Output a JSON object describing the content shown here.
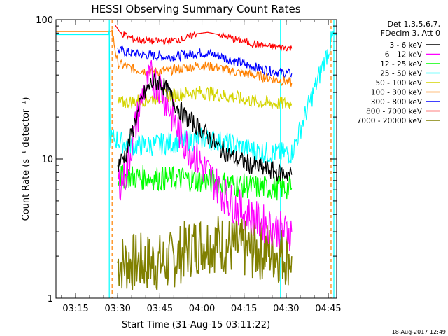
{
  "chart_data": {
    "type": "line",
    "title": "HESSI Observing Summary Count Rates",
    "xlabel": "Start Time (31-Aug-15 03:11:22)",
    "ylabel": "Count Rate (s⁻¹ detector⁻¹)",
    "yscale": "log",
    "ylim": [
      1,
      100
    ],
    "xlim": [
      "03:08",
      "04:48"
    ],
    "x_ticks": [
      "03:15",
      "03:30",
      "03:45",
      "04:00",
      "04:15",
      "04:30",
      "04:45"
    ],
    "y_ticks": [
      "1",
      "10",
      "100"
    ],
    "legend_header": [
      "Det 1,3,5,6,7,",
      "FDecim 3, Att 0"
    ],
    "legend_placement": "right-outside",
    "timestamp": "18-Aug-2017 12:49",
    "vertical_markers": [
      {
        "time": "03:27",
        "color": "#00ffff",
        "style": "solid"
      },
      {
        "time": "03:28",
        "color": "#ff8000",
        "style": "dashed"
      },
      {
        "time": "04:28",
        "color": "#00ffff",
        "style": "solid"
      },
      {
        "time": "04:46",
        "color": "#ff8000",
        "style": "dashed"
      },
      {
        "time": "04:47",
        "color": "#00ffff",
        "style": "solid"
      }
    ],
    "series": [
      {
        "name": "3 - 6 keV",
        "color": "#000000",
        "x": [
          "03:30",
          "03:33",
          "03:36",
          "03:39",
          "03:42",
          "03:45",
          "03:48",
          "03:51",
          "03:54",
          "03:57",
          "04:00",
          "04:03",
          "04:06",
          "04:09",
          "04:12",
          "04:15",
          "04:18",
          "04:21",
          "04:24",
          "04:27",
          "04:30",
          "04:32"
        ],
        "y": [
          9,
          11,
          18,
          28,
          35,
          36,
          30,
          24,
          20,
          18,
          16,
          14,
          12,
          11,
          10,
          9.5,
          9,
          8.6,
          8.3,
          8,
          7.8,
          7.7
        ]
      },
      {
        "name": "6 - 12 keV",
        "color": "#ff00ff",
        "x": [
          "03:30",
          "03:33",
          "03:36",
          "03:39",
          "03:42",
          "03:45",
          "03:48",
          "03:51",
          "03:54",
          "03:57",
          "04:00",
          "04:03",
          "04:06",
          "04:09",
          "04:12",
          "04:15",
          "04:18",
          "04:21",
          "04:24",
          "04:27",
          "04:30",
          "04:32"
        ],
        "y": [
          6.5,
          8,
          16,
          30,
          38,
          34,
          24,
          17,
          13,
          11,
          9,
          7.5,
          6.2,
          5.2,
          4.6,
          4.2,
          3.8,
          3.5,
          3.3,
          3.1,
          3.0,
          3.0
        ]
      },
      {
        "name": "12 - 25 keV",
        "color": "#00ff00",
        "x": [
          "03:30",
          "03:36",
          "03:42",
          "03:48",
          "03:54",
          "04:00",
          "04:06",
          "04:12",
          "04:18",
          "04:24",
          "04:30",
          "04:32"
        ],
        "y": [
          7.5,
          7.4,
          7.3,
          7.2,
          7.2,
          7,
          6.8,
          6.5,
          6.3,
          6.2,
          6.2,
          6.2
        ]
      },
      {
        "name": "25 - 50 keV",
        "color": "#00ffff",
        "x": [
          "03:08",
          "03:27",
          "03:29",
          "03:32",
          "03:36",
          "03:42",
          "03:48",
          "03:54",
          "04:00",
          "04:06",
          "04:12",
          "04:18",
          "04:24",
          "04:30",
          "04:32",
          "04:47",
          "04:48"
        ],
        "y": [
          78,
          78,
          14,
          13,
          12.5,
          12.5,
          13,
          13.5,
          14,
          13.5,
          12.5,
          11.5,
          11,
          11,
          11,
          78,
          78
        ]
      },
      {
        "name": "50 - 100 keV",
        "color": "#d4d400",
        "x": [
          "03:30",
          "03:36",
          "03:42",
          "03:48",
          "03:54",
          "04:00",
          "04:06",
          "04:12",
          "04:18",
          "04:24",
          "04:30",
          "04:32"
        ],
        "y": [
          25,
          26,
          27,
          28.5,
          29.5,
          30,
          29,
          27.5,
          26,
          25,
          25,
          25
        ]
      },
      {
        "name": "100 - 300 keV",
        "color": "#ff8000",
        "x": [
          "03:08",
          "03:28",
          "03:30",
          "03:36",
          "03:42",
          "03:48",
          "03:54",
          "04:00",
          "04:06",
          "04:12",
          "04:18",
          "04:24",
          "04:30",
          "04:32"
        ],
        "y": [
          82,
          82,
          48,
          44,
          42,
          43,
          45,
          47,
          45,
          42,
          40,
          38,
          36,
          35
        ]
      },
      {
        "name": "300 - 800 keV",
        "color": "#0000ff",
        "x": [
          "03:30",
          "03:36",
          "03:42",
          "03:48",
          "03:54",
          "04:00",
          "04:06",
          "04:12",
          "04:18",
          "04:24",
          "04:30",
          "04:32"
        ],
        "y": [
          60,
          57,
          55,
          54,
          56,
          58,
          55,
          50,
          46,
          43,
          41,
          41
        ]
      },
      {
        "name": "800 - 7000 keV",
        "color": "#ff0000",
        "x": [
          "03:29",
          "03:31",
          "03:36",
          "03:42",
          "03:48",
          "03:54",
          "03:58",
          "04:02",
          "04:06",
          "04:12",
          "04:18",
          "04:24",
          "04:30",
          "04:32"
        ],
        "y": [
          92,
          80,
          72,
          70,
          70,
          73,
          79,
          81,
          78,
          72,
          67,
          64,
          63,
          62
        ]
      },
      {
        "name": "7000 - 20000 keV",
        "color": "#808000",
        "x": [
          "03:30",
          "03:36",
          "03:42",
          "03:48",
          "03:54",
          "04:00",
          "04:06",
          "04:12",
          "04:18",
          "04:24",
          "04:30",
          "04:32"
        ],
        "y": [
          1.8,
          1.8,
          1.8,
          1.8,
          2.2,
          2.5,
          2.5,
          2.3,
          2.2,
          2.2,
          2.0,
          2.0
        ]
      }
    ]
  }
}
